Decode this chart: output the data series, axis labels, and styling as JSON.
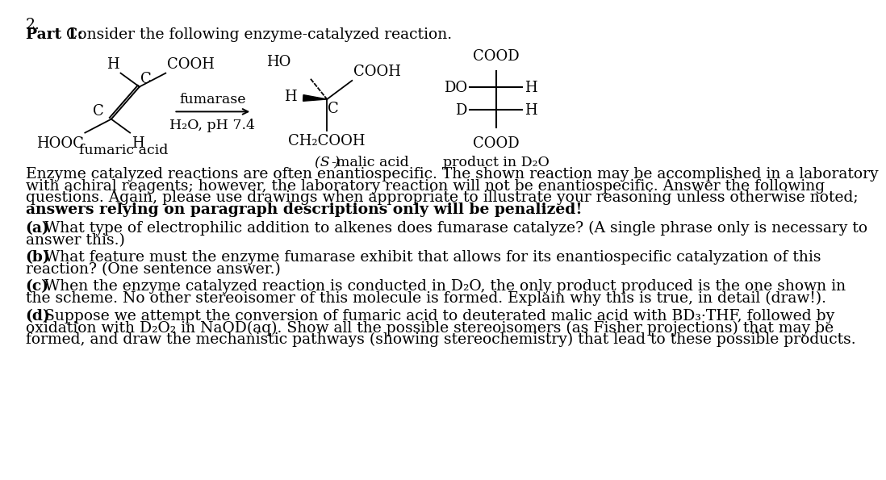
{
  "title_number": "2.",
  "part1_label": "Part 1:",
  "part1_text": " Consider the following enzyme-catalyzed reaction.",
  "fumaric_acid_label": "fumaric acid",
  "s_malic_acid_label": "(S )-malic acid",
  "product_d2o_label": "product in D₂O",
  "fumarase_label": "fumarase",
  "h2o_ph_label": "H₂O, pH 7.4",
  "para_line1": "Enzyme catalyzed reactions are often enantiospecific. The shown reaction may be accomplished in a laboratory",
  "para_line2": "with achiral reagents; however, the laboratory reaction will not be enantiospecific. Answer the following",
  "para_line3": "questions. Again, please use drawings when appropriate to illustrate your reasoning unless otherwise noted;",
  "para_line4": "answers relying on paragraph descriptions only will be penalized!",
  "qa_bold": "(a)",
  "qa_rest": " What type of electrophilic addition to alkenes does fumarase catalyze? (A single phrase only is necessary to",
  "qa_line2": "answer this.)",
  "qb_bold": "(b)",
  "qb_rest": " What feature must the enzyme fumarase exhibit that allows for its enantiospecific catalyzation of this",
  "qb_line2": "reaction? (One sentence answer.)",
  "qc_bold": "(c)",
  "qc_rest": " When the enzyme catalyzed reaction is conducted in D₂O, the only product produced is the one shown in",
  "qc_line2": "the scheme. No other stereoisomer of this molecule is formed. Explain why this is true, in detail (draw!).",
  "qd_bold": "(d)",
  "qd_rest": " Suppose we attempt the conversion of fumaric acid to deuterated malic acid with BD₃·THF, followed by",
  "qd_line2": "oxidation with D₂O₂ in NaOD(aq). Show all the possible stereoisomers (as Fisher projections) that may be",
  "qd_line3": "formed, and draw the mechanistic pathways (showing stereochemistry) that lead to these possible products.",
  "bg_color": "#ffffff",
  "text_color": "#000000",
  "fs": 13.5,
  "fs_chem": 13.0,
  "fs_label": 12.5
}
